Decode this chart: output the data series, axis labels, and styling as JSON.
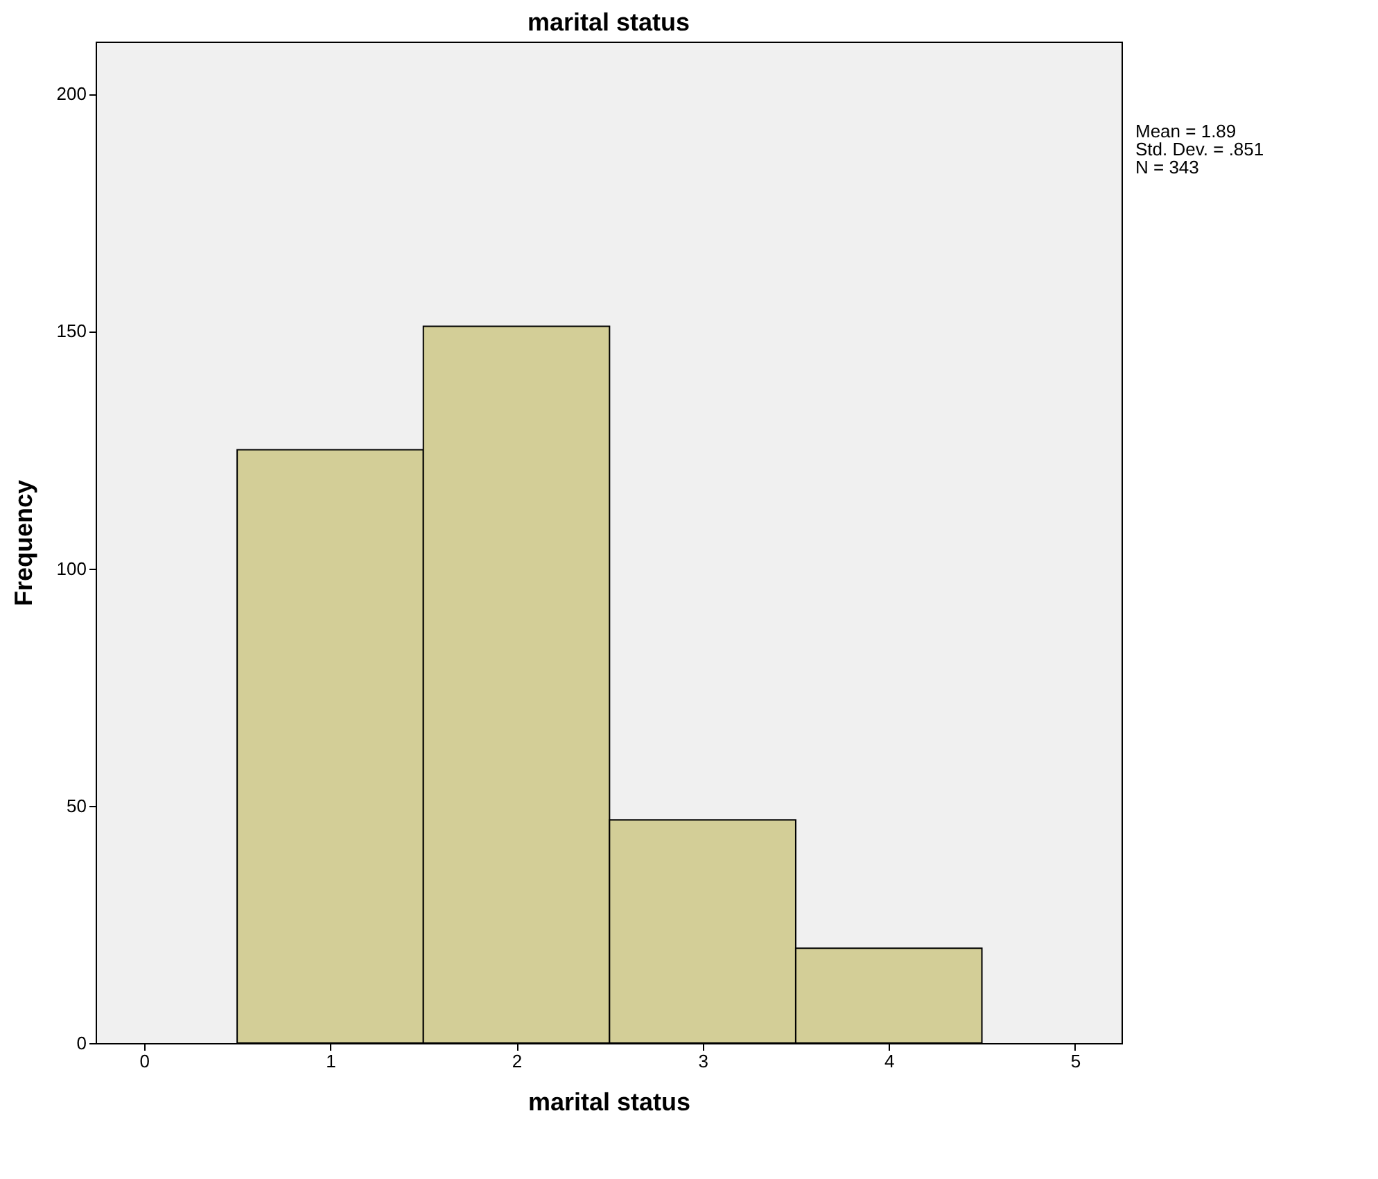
{
  "chart_data": {
    "type": "histogram",
    "title": "marital status",
    "xlabel": "marital status",
    "ylabel": "Frequency",
    "bins": [
      0.5,
      1.5,
      2.5,
      3.5,
      4.5
    ],
    "values": [
      125,
      151,
      47,
      20
    ],
    "color": "#d3ce97",
    "xlim": [
      -0.26,
      5.25
    ],
    "xticks": [
      0,
      1,
      2,
      3,
      4,
      5
    ],
    "ylim": [
      0,
      211
    ],
    "yticks": [
      0,
      50,
      100,
      150,
      200
    ],
    "grid": false,
    "annotations": [
      "Mean = 1.89",
      "Std. Dev. = .851",
      "N = 343"
    ]
  }
}
